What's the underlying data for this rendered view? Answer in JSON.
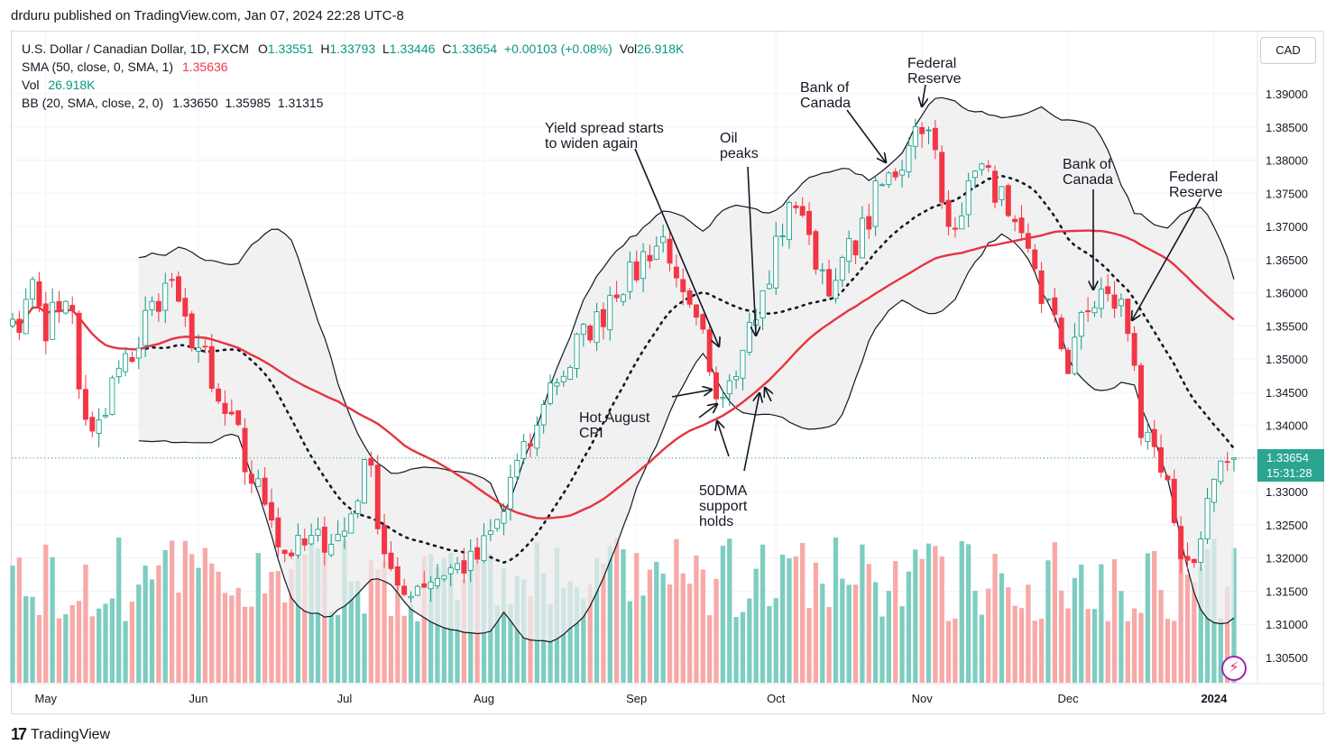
{
  "header": {
    "published": "drduru published on TradingView.com, Jan 07, 2024 22:28 UTC-8"
  },
  "legend": {
    "symbol": "U.S. Dollar / Canadian Dollar, 1D, FXCM",
    "o_key": "O",
    "o": "1.33551",
    "h_key": "H",
    "h": "1.33793",
    "l_key": "L",
    "l": "1.33446",
    "c_key": "C",
    "c": "1.33654",
    "chg": "+0.00103 (+0.08%)",
    "vol_key": "Vol",
    "vol_inline": "26.918K",
    "sma_label": "SMA (50, close, 0, SMA, 1)",
    "sma_value": "1.35636",
    "vol_label": "Vol",
    "vol_value": "26.918K",
    "bb_label": "BB (20, SMA, close, 2, 0)",
    "bb_mid": "1.33650",
    "bb_up": "1.35985",
    "bb_low": "1.31315"
  },
  "currency_button": "CAD",
  "price_tag": {
    "price": "1.33654",
    "countdown": "15:31:28"
  },
  "footer": {
    "logo": "17",
    "brand": "TradingView"
  },
  "colors": {
    "up": "#089981",
    "down": "#f23645",
    "vol_up": "#7ecdc0",
    "vol_down": "#f7a9a7",
    "sma50": "#e8333f",
    "bb_band": "#ececee",
    "bb_line": "#131722"
  },
  "chart_data": {
    "type": "candlestick",
    "y_ticks": [
      "1.39000",
      "1.38500",
      "1.38000",
      "1.37500",
      "1.37000",
      "1.36500",
      "1.36000",
      "1.35500",
      "1.35000",
      "1.34500",
      "1.34000",
      "1.33500",
      "1.33000",
      "1.32500",
      "1.32000",
      "1.31500",
      "1.31000",
      "1.30500"
    ],
    "x_ticks": [
      "May",
      "Jun",
      "Jul",
      "Aug",
      "Sep",
      "Oct",
      "Nov",
      "Dec",
      "2024"
    ],
    "ylim": [
      1.3035,
      1.3935
    ],
    "annotations": [
      {
        "id": "yield",
        "lines": [
          "Yield spread starts",
          "to widen again"
        ]
      },
      {
        "id": "oil",
        "lines": [
          "Oil",
          "peaks"
        ]
      },
      {
        "id": "boc1",
        "lines": [
          "Bank of",
          "Canada"
        ]
      },
      {
        "id": "fed1",
        "lines": [
          "Federal",
          "Reserve"
        ]
      },
      {
        "id": "boc2",
        "lines": [
          "Bank of",
          "Canada"
        ]
      },
      {
        "id": "fed2",
        "lines": [
          "Federal",
          "Reserve"
        ]
      },
      {
        "id": "cpi",
        "lines": [
          "Hot August",
          "CPI"
        ]
      },
      {
        "id": "sma",
        "lines": [
          "50DMA",
          "support",
          "holds"
        ]
      }
    ],
    "anchors": [
      {
        "date": "2023-05-01",
        "close": 1.355
      },
      {
        "date": "2023-05-04",
        "close": 1.36
      },
      {
        "date": "2023-05-10",
        "close": 1.338
      },
      {
        "date": "2023-05-16",
        "close": 1.348
      },
      {
        "date": "2023-05-26",
        "close": 1.362
      },
      {
        "date": "2023-06-06",
        "close": 1.343
      },
      {
        "date": "2023-06-20",
        "close": 1.321
      },
      {
        "date": "2023-07-03",
        "close": 1.324
      },
      {
        "date": "2023-07-07",
        "close": 1.336
      },
      {
        "date": "2023-07-13",
        "close": 1.314
      },
      {
        "date": "2023-07-20",
        "close": 1.317
      },
      {
        "date": "2023-07-31",
        "close": 1.32
      },
      {
        "date": "2023-08-15",
        "close": 1.346
      },
      {
        "date": "2023-08-28",
        "close": 1.36
      },
      {
        "date": "2023-09-07",
        "close": 1.368
      },
      {
        "date": "2023-09-19",
        "close": 1.345
      },
      {
        "date": "2023-09-26",
        "close": 1.355
      },
      {
        "date": "2023-10-05",
        "close": 1.374
      },
      {
        "date": "2023-10-13",
        "close": 1.36
      },
      {
        "date": "2023-10-20",
        "close": 1.371
      },
      {
        "date": "2023-11-01",
        "close": 1.386
      },
      {
        "date": "2023-11-07",
        "close": 1.37
      },
      {
        "date": "2023-11-13",
        "close": 1.38
      },
      {
        "date": "2023-11-20",
        "close": 1.37
      },
      {
        "date": "2023-11-28",
        "close": 1.358
      },
      {
        "date": "2023-12-01",
        "close": 1.349
      },
      {
        "date": "2023-12-08",
        "close": 1.36
      },
      {
        "date": "2023-12-13",
        "close": 1.358
      },
      {
        "date": "2023-12-18",
        "close": 1.339
      },
      {
        "date": "2023-12-27",
        "close": 1.319
      },
      {
        "date": "2024-01-05",
        "close": 1.3365
      }
    ]
  }
}
